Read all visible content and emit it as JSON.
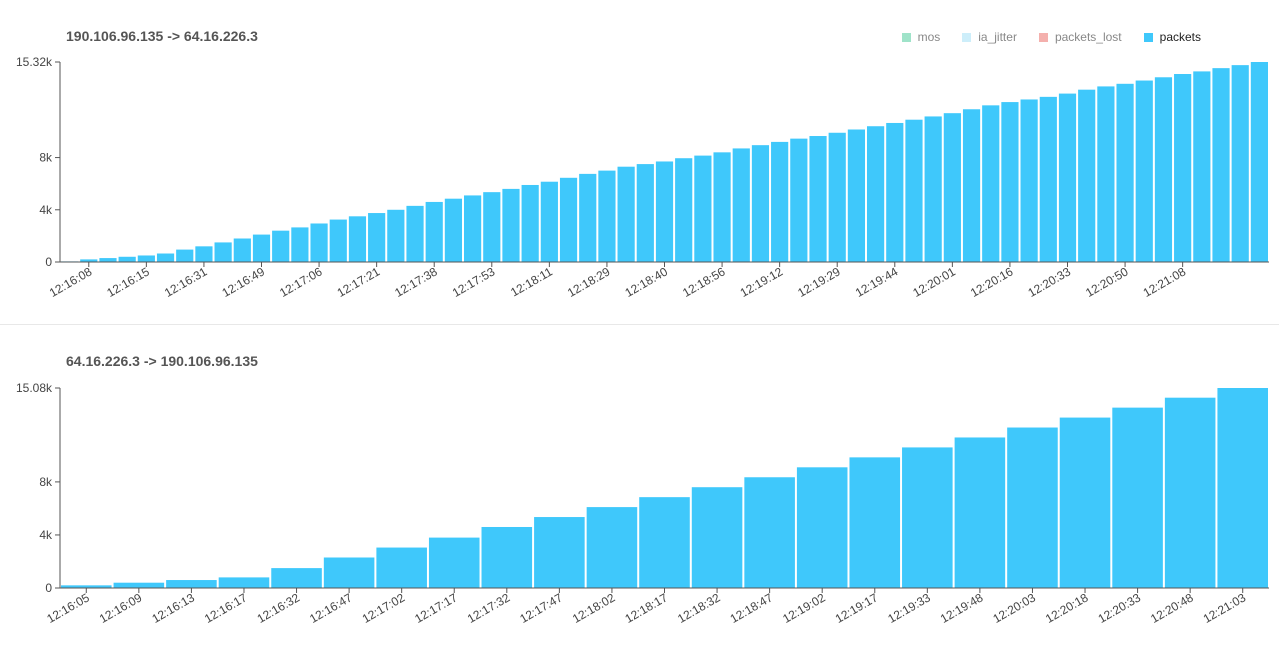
{
  "legend": [
    {
      "name": "mos",
      "color": "#9fe3c9",
      "active": false
    },
    {
      "name": "ia_jitter",
      "color": "#cdeefa",
      "active": false
    },
    {
      "name": "packets_lost",
      "color": "#f4b0ad",
      "active": false
    },
    {
      "name": "packets",
      "color": "#3fc8fb",
      "active": true
    }
  ],
  "charts": [
    {
      "title": "190.106.96.135 -> 64.16.226.3",
      "chart_data": {
        "type": "bar",
        "series": [
          {
            "name": "packets",
            "values": [
              0,
              200,
              300,
              400,
              500,
              650,
              950,
              1200,
              1500,
              1800,
              2100,
              2400,
              2650,
              2950,
              3250,
              3500,
              3750,
              4000,
              4300,
              4600,
              4850,
              5100,
              5350,
              5600,
              5900,
              6150,
              6450,
              6750,
              7000,
              7300,
              7500,
              7700,
              7950,
              8150,
              8400,
              8700,
              8950,
              9200,
              9450,
              9650,
              9900,
              10150,
              10400,
              10650,
              10900,
              11150,
              11400,
              11700,
              12000,
              12250,
              12450,
              12650,
              12900,
              13200,
              13450,
              13650,
              13900,
              14150,
              14400,
              14600,
              14850,
              15080,
              15320
            ]
          }
        ],
        "ylim": [
          0,
          15320
        ],
        "yticks": [
          "0",
          "4k",
          "8k",
          "15.32k"
        ],
        "ytick_values": [
          0,
          4000,
          8000,
          15320
        ],
        "x_tick_labels": [
          "12:16:08",
          "12:16:15",
          "12:16:31",
          "12:16:49",
          "12:17:06",
          "12:17:21",
          "12:17:38",
          "12:17:53",
          "12:18:11",
          "12:18:29",
          "12:18:40",
          "12:18:56",
          "12:19:12",
          "12:19:29",
          "12:19:44",
          "12:20:01",
          "12:20:16",
          "12:20:33",
          "12:20:50",
          "12:21:08"
        ],
        "x_tick_every": 3,
        "x_tick_offset": 1
      }
    },
    {
      "title": "64.16.226.3 -> 190.106.96.135",
      "chart_data": {
        "type": "bar",
        "series": [
          {
            "name": "packets",
            "values": [
              200,
              400,
              600,
              800,
              1500,
              2300,
              3050,
              3800,
              4600,
              5350,
              6100,
              6850,
              7600,
              8350,
              9100,
              9850,
              10600,
              11350,
              12100,
              12850,
              13600,
              14350,
              15080
            ]
          }
        ],
        "ylim": [
          0,
          15080
        ],
        "yticks": [
          "0",
          "4k",
          "8k",
          "15.08k"
        ],
        "ytick_values": [
          0,
          4000,
          8000,
          15080
        ],
        "x_tick_labels": [
          "12:16:05",
          "12:16:09",
          "12:16:13",
          "12:16:17",
          "12:16:32",
          "12:16:47",
          "12:17:02",
          "12:17:17",
          "12:17:32",
          "12:17:47",
          "12:18:02",
          "12:18:17",
          "12:18:32",
          "12:18:47",
          "12:19:02",
          "12:19:17",
          "12:19:33",
          "12:19:48",
          "12:20:03",
          "12:20:18",
          "12:20:33",
          "12:20:48",
          "12:21:03"
        ],
        "x_tick_every": 1,
        "x_tick_offset": 0
      }
    }
  ]
}
